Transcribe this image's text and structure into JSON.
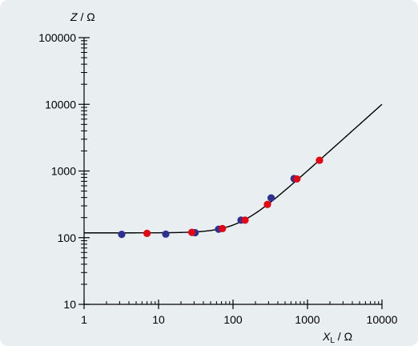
{
  "chart_data": {
    "type": "scatter",
    "x_scale": "log",
    "y_scale": "log",
    "xlim": [
      1,
      10000
    ],
    "ylim": [
      10,
      100000
    ],
    "x_ticks": [
      1,
      10,
      100,
      1000,
      10000
    ],
    "x_tick_labels": [
      "1",
      "10",
      "100",
      "1000",
      "10000"
    ],
    "y_ticks": [
      10,
      100,
      1000,
      10000,
      100000
    ],
    "y_tick_labels": [
      "10",
      "100",
      "1000",
      "10000",
      "100000"
    ],
    "ylabel": {
      "symbol": "Z",
      "unit": " / Ω"
    },
    "xlabel": {
      "symbol": "X",
      "subscript": "L",
      "unit": " / Ω"
    },
    "grid": false,
    "series": [
      {
        "color": "#2e3192",
        "points": [
          [
            3.2,
            112
          ],
          [
            12.5,
            113
          ],
          [
            31,
            119
          ],
          [
            64,
            134
          ],
          [
            128,
            183
          ],
          [
            325,
            395
          ],
          [
            660,
            770
          ]
        ]
      },
      {
        "color": "#e30613",
        "points": [
          [
            7,
            116
          ],
          [
            28,
            120
          ],
          [
            72,
            137
          ],
          [
            145,
            183
          ],
          [
            290,
            315
          ],
          [
            720,
            760
          ],
          [
            1450,
            1450
          ]
        ]
      }
    ],
    "fit_curve": {
      "color": "#000000",
      "description_formula": "Z = sqrt(R^2 + X_L^2)",
      "R": 118,
      "x_range": [
        1,
        10000
      ]
    }
  }
}
